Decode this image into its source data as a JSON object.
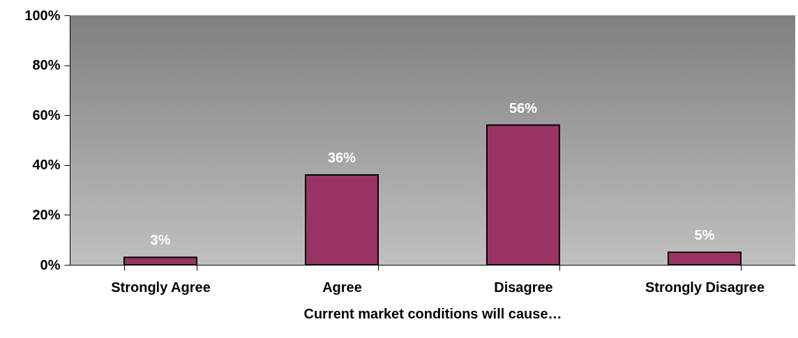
{
  "chart_data": {
    "type": "bar",
    "xlabel": "Current market conditions will cause…",
    "categories": [
      "Strongly Agree",
      "Agree",
      "Disagree",
      "Strongly Disagree"
    ],
    "values": [
      3,
      36,
      56,
      5
    ],
    "color": "#993366",
    "value_labels": [
      "3%",
      "36%",
      "56%",
      "5%"
    ],
    "ylim": [
      0,
      100
    ],
    "yticks": [
      {
        "value": 0,
        "label": "0%"
      },
      {
        "value": 20,
        "label": "20%"
      },
      {
        "value": 40,
        "label": "40%"
      },
      {
        "value": 60,
        "label": "60%"
      },
      {
        "value": 80,
        "label": "80%"
      },
      {
        "value": 100,
        "label": "100%"
      }
    ],
    "grid": false
  }
}
